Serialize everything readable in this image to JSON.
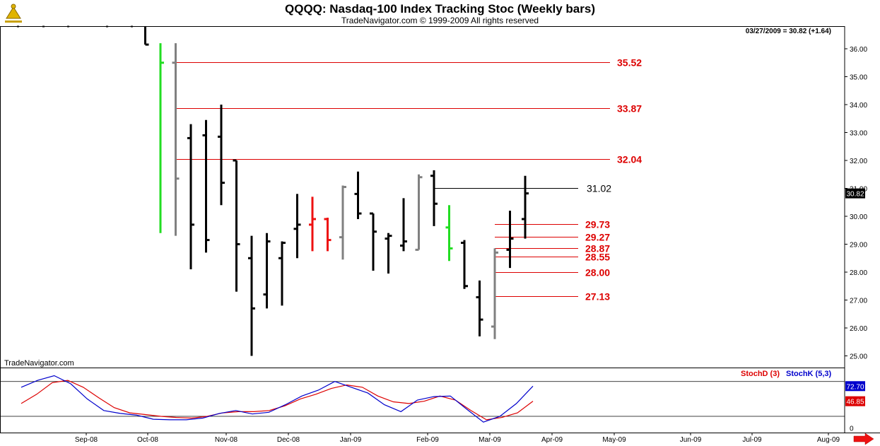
{
  "header": {
    "title": "QQQQ:  Nasdaq-100 Index Tracking Stoc  (Weekly bars)",
    "subtitle": "TradeNavigator.com © 1999-2009 All rights reserved",
    "last_bar_info": "03/27/2009 = 30.82 (+1.64)",
    "watermark": "TradeNavigator.com"
  },
  "colors": {
    "up": "#000000",
    "down_gray": "#808080",
    "green": "#22dd22",
    "red": "#ee1111",
    "level_line": "#dd0000",
    "stoch_d": "#dd0000",
    "stoch_k": "#0000cc"
  },
  "chart_data": [
    {
      "type": "ohlc",
      "title": "QQQQ:  Nasdaq-100 Index Tracking Stoc  (Weekly bars)",
      "ylim": [
        24.6,
        36.8
      ],
      "y_ticks": [
        "25.00",
        "26.00",
        "27.00",
        "28.00",
        "29.00",
        "30.00",
        "31.00",
        "32.00",
        "33.00",
        "34.00",
        "35.00",
        "36.00"
      ],
      "x_tick_labels": [
        "Sep-08",
        "Oct-08",
        "Nov-08",
        "Dec-08",
        "Jan-09",
        "Feb-09",
        "Mar-09",
        "Apr-09",
        "May-09",
        "Jun-09",
        "Jul-09",
        "Aug-09"
      ],
      "last_price_label": "30.82",
      "bars": [
        {
          "o": null,
          "h": 36.9,
          "l": 36.15,
          "c": 36.15,
          "color": "up"
        },
        {
          "o": null,
          "h": 36.2,
          "l": 29.4,
          "c": 35.5,
          "color": "green"
        },
        {
          "o": 35.5,
          "h": 36.2,
          "l": 29.3,
          "c": 31.35,
          "color": "down"
        },
        {
          "o": 32.8,
          "h": 33.3,
          "l": 28.1,
          "c": 29.7,
          "color": "up"
        },
        {
          "o": 32.9,
          "h": 33.45,
          "l": 28.7,
          "c": 29.15,
          "color": "up"
        },
        {
          "o": 32.85,
          "h": 34.0,
          "l": 30.4,
          "c": 31.2,
          "color": "up"
        },
        {
          "o": 32.0,
          "h": 32.0,
          "l": 27.3,
          "c": 29.0,
          "color": "up"
        },
        {
          "o": 28.5,
          "h": 29.3,
          "l": 25.0,
          "c": 26.7,
          "color": "up"
        },
        {
          "o": 27.2,
          "h": 29.4,
          "l": 26.7,
          "c": 29.1,
          "color": "up"
        },
        {
          "o": 28.5,
          "h": 29.1,
          "l": 26.8,
          "c": 29.05,
          "color": "up"
        },
        {
          "o": 29.55,
          "h": 30.8,
          "l": 28.5,
          "c": 29.7,
          "color": "up"
        },
        {
          "o": 29.7,
          "h": 30.7,
          "l": 28.75,
          "c": 29.9,
          "color": "red"
        },
        {
          "o": 29.9,
          "h": 29.95,
          "l": 28.75,
          "c": 29.15,
          "color": "red"
        },
        {
          "o": 29.25,
          "h": 31.1,
          "l": 28.45,
          "c": 31.05,
          "color": "down"
        },
        {
          "o": 30.8,
          "h": 31.6,
          "l": 29.9,
          "c": 30.1,
          "color": "up"
        },
        {
          "o": 30.1,
          "h": 30.1,
          "l": 28.05,
          "c": 29.45,
          "color": "up"
        },
        {
          "o": 29.2,
          "h": 29.4,
          "l": 27.95,
          "c": 29.3,
          "color": "up"
        },
        {
          "o": 28.95,
          "h": 30.65,
          "l": 28.75,
          "c": 29.1,
          "color": "up"
        },
        {
          "o": 28.8,
          "h": 31.5,
          "l": 28.8,
          "c": 31.4,
          "color": "down"
        },
        {
          "o": 31.45,
          "h": 31.65,
          "l": 29.65,
          "c": 30.45,
          "color": "up"
        },
        {
          "o": 29.6,
          "h": 30.4,
          "l": 28.4,
          "c": 28.85,
          "color": "green"
        },
        {
          "o": 29.05,
          "h": 29.15,
          "l": 27.4,
          "c": 27.5,
          "color": "up"
        },
        {
          "o": 27.1,
          "h": 27.7,
          "l": 25.7,
          "c": 26.3,
          "color": "up"
        },
        {
          "o": 26.05,
          "h": 28.85,
          "l": 25.6,
          "c": 28.7,
          "color": "down"
        },
        {
          "o": 28.8,
          "h": 30.2,
          "l": 28.15,
          "c": 29.2,
          "color": "up"
        },
        {
          "o": 29.9,
          "h": 31.45,
          "l": 29.2,
          "c": 30.82,
          "color": "up"
        }
      ],
      "levels": [
        {
          "value": 35.52,
          "label": "35.52",
          "color": "red",
          "bar_start": 2,
          "x_end": 863
        },
        {
          "value": 33.87,
          "label": "33.87",
          "color": "red",
          "bar_start": 2,
          "x_end": 863
        },
        {
          "value": 32.04,
          "label": "32.04",
          "color": "red",
          "bar_start": 2,
          "x_end": 863
        },
        {
          "value": 31.02,
          "label": "31.02",
          "color": "black",
          "bar_start": 19,
          "x_end": 818
        },
        {
          "value": 29.73,
          "label": "29.73",
          "color": "red",
          "bar_start": 23,
          "x_end": 818
        },
        {
          "value": 29.27,
          "label": "29.27",
          "color": "red",
          "bar_start": 23,
          "x_end": 818
        },
        {
          "value": 28.87,
          "label": "28.87",
          "color": "red",
          "bar_start": 23,
          "x_end": 818
        },
        {
          "value": 28.55,
          "label": "28.55",
          "color": "red",
          "bar_start": 23,
          "x_end": 818
        },
        {
          "value": 28.0,
          "label": "28.00",
          "color": "red",
          "bar_start": 23,
          "x_end": 818
        },
        {
          "value": 27.13,
          "label": "27.13",
          "color": "red",
          "bar_start": 23,
          "x_end": 818
        }
      ]
    },
    {
      "type": "line",
      "title": "Stochastic",
      "ylim": [
        -8,
        104
      ],
      "ref_lines": [
        20,
        80
      ],
      "y_tick_label": "0",
      "series": [
        {
          "name": "StochD (3)",
          "color": "#dd0000",
          "last_label": "46.85",
          "values": [
            42,
            58,
            78,
            82,
            70,
            52,
            35,
            26,
            23,
            20,
            18,
            17,
            20,
            26,
            28,
            28,
            30,
            38,
            50,
            58,
            68,
            74,
            70,
            55,
            45,
            42,
            46,
            55,
            48,
            30,
            14,
            18,
            26,
            46
          ]
        },
        {
          "name": "StochK (5,3)",
          "color": "#0000cc",
          "last_label": "72.70",
          "values": [
            70,
            82,
            90,
            76,
            50,
            30,
            25,
            22,
            15,
            14,
            14,
            17,
            25,
            30,
            24,
            27,
            40,
            55,
            65,
            80,
            70,
            60,
            40,
            28,
            48,
            54,
            55,
            32,
            10,
            20,
            42,
            72
          ]
        }
      ]
    }
  ]
}
